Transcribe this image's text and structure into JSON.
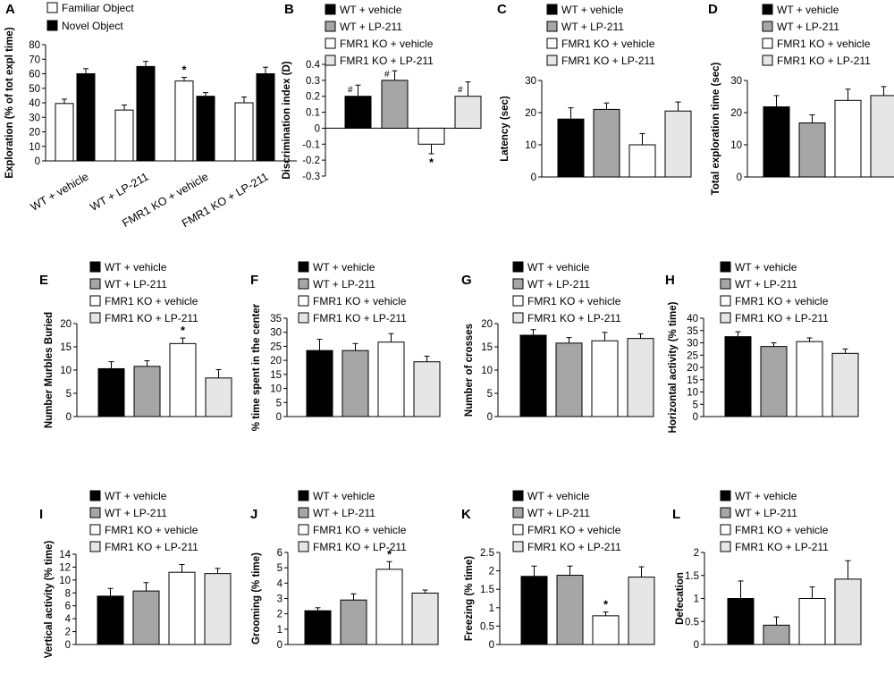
{
  "groups": [
    "WT + vehicle",
    "WT + LP-211",
    "FMR1 KO + vehicle",
    "FMR1 KO + LP-211"
  ],
  "colors": {
    "wt_vehicle": "#000000",
    "wt_lp211": "#a6a6a6",
    "ko_vehicle": "#ffffff",
    "ko_lp211": "#e6e6e6"
  },
  "chart_data": [
    {
      "id": "A",
      "type": "bar",
      "panel_label": "A",
      "ylabel": "Exploration (% of tot expl time)",
      "ylim": [
        0,
        80
      ],
      "yticks": [
        0,
        10,
        20,
        30,
        40,
        50,
        60,
        70,
        80
      ],
      "categories": [
        "WT + vehicle",
        "WT + LP-211",
        "FMR1 KO + vehicle",
        "FMR1 KO + LP-211"
      ],
      "series": [
        {
          "name": "Familiar Object",
          "color": "#ffffff",
          "values": [
            39.5,
            35,
            55,
            40
          ],
          "errors": [
            3,
            3.5,
            2.5,
            4
          ],
          "marks": [
            "",
            "",
            "*",
            ""
          ]
        },
        {
          "name": "Novel Object",
          "color": "#000000",
          "values": [
            60,
            65,
            44.5,
            60
          ],
          "errors": [
            3.5,
            3.5,
            2.5,
            4.5
          ],
          "marks": [
            "",
            "",
            "",
            ""
          ]
        }
      ]
    },
    {
      "id": "B",
      "type": "bar",
      "panel_label": "B",
      "ylabel": "Discrimination index (D)",
      "ylim": [
        -0.3,
        0.4
      ],
      "ytick_labels": [
        "0.4",
        "0.3",
        "0.2",
        "0.1",
        "0",
        "-0.1",
        "-0.2",
        "-0.3"
      ],
      "series": [
        {
          "name": "D",
          "values": [
            0.2,
            0.3,
            -0.1,
            0.2
          ],
          "errors": [
            0.07,
            0.06,
            0.06,
            0.09
          ],
          "marks": [
            "#",
            "#",
            "*",
            "#"
          ]
        }
      ]
    },
    {
      "id": "C",
      "type": "bar",
      "panel_label": "C",
      "ylabel": "Latency (sec)",
      "ylim": [
        0,
        30
      ],
      "yticks": [
        0,
        10,
        20,
        30
      ],
      "series": [
        {
          "name": "Latency",
          "values": [
            18,
            21,
            10,
            20.5
          ],
          "errors": [
            3.5,
            2,
            3.5,
            2.8
          ],
          "marks": [
            "",
            "",
            "",
            ""
          ]
        }
      ]
    },
    {
      "id": "D",
      "type": "bar",
      "panel_label": "D",
      "ylabel": "Total exploration time (sec)",
      "ylim": [
        0,
        30
      ],
      "yticks": [
        0,
        10,
        20,
        30
      ],
      "series": [
        {
          "name": "Total exploration",
          "values": [
            21.8,
            16.8,
            23.8,
            25.3
          ],
          "errors": [
            3.5,
            2.5,
            3.5,
            2.8
          ],
          "marks": [
            "",
            "",
            "",
            ""
          ]
        }
      ]
    },
    {
      "id": "E",
      "type": "bar",
      "panel_label": "E",
      "ylabel": "Number Murbles Buried",
      "ylim": [
        0,
        20
      ],
      "yticks": [
        0,
        5,
        10,
        15,
        20
      ],
      "series": [
        {
          "name": "Marbles buried",
          "values": [
            10.3,
            10.8,
            15.7,
            8.3
          ],
          "errors": [
            1.5,
            1.2,
            1.2,
            1.8
          ],
          "marks": [
            "",
            "",
            "*",
            ""
          ]
        }
      ]
    },
    {
      "id": "F",
      "type": "bar",
      "panel_label": "F",
      "ylabel": "% time spent in the center",
      "ylim": [
        0,
        35
      ],
      "yticks": [
        0,
        5,
        10,
        15,
        20,
        25,
        30,
        35
      ],
      "series": [
        {
          "name": "Center time",
          "values": [
            23.5,
            23.5,
            26.5,
            19.5
          ],
          "errors": [
            4,
            2.5,
            3,
            2
          ],
          "marks": [
            "",
            "",
            "",
            ""
          ]
        }
      ]
    },
    {
      "id": "G",
      "type": "bar",
      "panel_label": "G",
      "ylabel": "Number of crosses",
      "ylim": [
        0,
        20
      ],
      "yticks": [
        0,
        5,
        10,
        15,
        20
      ],
      "series": [
        {
          "name": "Crosses",
          "values": [
            17.5,
            15.8,
            16.3,
            16.8
          ],
          "errors": [
            1.2,
            1.2,
            1.8,
            1
          ],
          "marks": [
            "",
            "",
            "",
            ""
          ]
        }
      ]
    },
    {
      "id": "H",
      "type": "bar",
      "panel_label": "H",
      "ylabel": "Horizontal activity (% time)",
      "ylim": [
        0,
        40
      ],
      "yticks": [
        0,
        5,
        10,
        15,
        20,
        25,
        30,
        35,
        40
      ],
      "series": [
        {
          "name": "Horizontal activity",
          "values": [
            32.5,
            28.5,
            30.5,
            25.7
          ],
          "errors": [
            2,
            1.5,
            1.5,
            1.8
          ],
          "marks": [
            "",
            "",
            "",
            ""
          ]
        }
      ]
    },
    {
      "id": "I",
      "type": "bar",
      "panel_label": "I",
      "ylabel": "Vertical activity (% time)",
      "ylim": [
        0,
        14
      ],
      "yticks": [
        0,
        2,
        4,
        6,
        8,
        10,
        12,
        14
      ],
      "series": [
        {
          "name": "Vertical activity",
          "values": [
            7.5,
            8.3,
            11.2,
            11.0
          ],
          "errors": [
            1.2,
            1.3,
            1.2,
            0.8
          ],
          "marks": [
            "",
            "",
            "",
            ""
          ]
        }
      ]
    },
    {
      "id": "J",
      "type": "bar",
      "panel_label": "J",
      "ylabel": "Grooming (% time)",
      "ylim": [
        0,
        6
      ],
      "yticks": [
        0,
        1,
        2,
        3,
        4,
        5,
        6
      ],
      "series": [
        {
          "name": "Grooming",
          "values": [
            2.2,
            2.9,
            4.9,
            3.35
          ],
          "errors": [
            0.2,
            0.4,
            0.5,
            0.2
          ],
          "marks": [
            "",
            "",
            "*",
            ""
          ]
        }
      ]
    },
    {
      "id": "K",
      "type": "bar",
      "panel_label": "K",
      "ylabel": "Freezing (% time)",
      "ylim": [
        0,
        2.5
      ],
      "ytick_labels": [
        "0",
        "0.5",
        "1",
        "1.5",
        "2",
        "2.5"
      ],
      "series": [
        {
          "name": "Freezing",
          "values": [
            1.85,
            1.88,
            0.78,
            1.83
          ],
          "errors": [
            0.28,
            0.25,
            0.1,
            0.28
          ],
          "marks": [
            "",
            "",
            "*",
            ""
          ]
        }
      ]
    },
    {
      "id": "L",
      "type": "bar",
      "panel_label": "L",
      "ylabel": "Defecation",
      "ylim": [
        0,
        2
      ],
      "ytick_labels": [
        "0",
        "0.5",
        "1",
        "1.5",
        "2"
      ],
      "series": [
        {
          "name": "Defecation",
          "values": [
            1.0,
            0.42,
            1.0,
            1.42
          ],
          "errors": [
            0.38,
            0.18,
            0.25,
            0.4
          ],
          "marks": [
            "",
            "",
            "",
            ""
          ]
        }
      ]
    }
  ]
}
